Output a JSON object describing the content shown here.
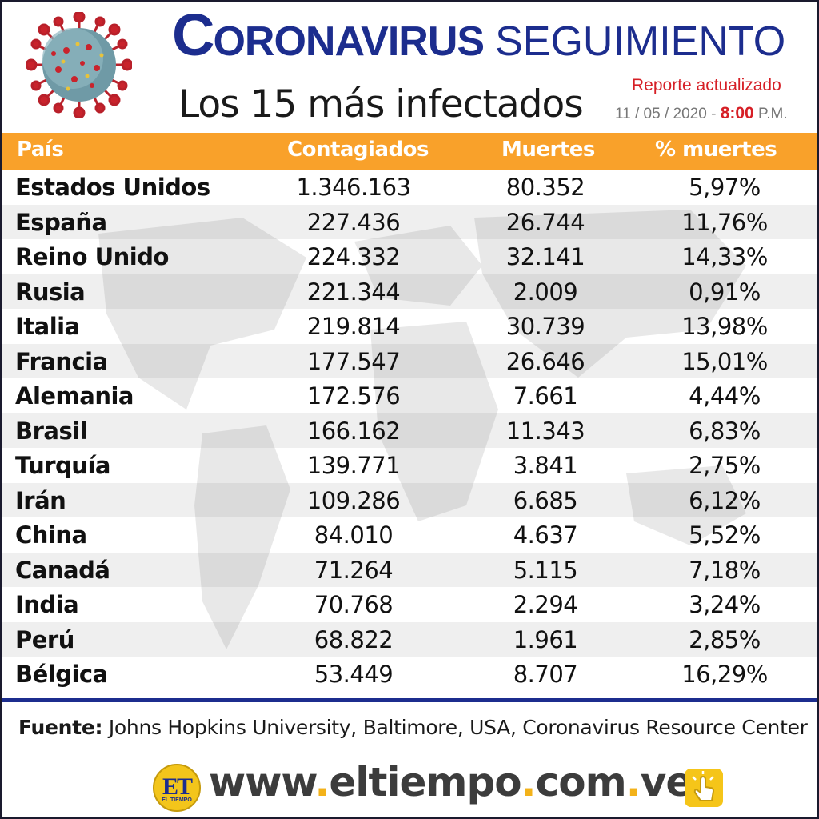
{
  "header": {
    "title_first_letter": "C",
    "title_bold_rest": "ORONAVIRUS",
    "title_light": "SEGUIMIENTO",
    "subtitle": "Los 15 más infectados",
    "report_label": "Reporte actualizado",
    "report_date": "11 / 05 / 2020 -",
    "report_hour": "8:00",
    "report_ampm": "P.M."
  },
  "table": {
    "headers": [
      "País",
      "Contagiados",
      "Muertes",
      "% muertes"
    ],
    "rows": [
      [
        "Estados Unidos",
        "1.346.163",
        "80.352",
        "5,97%"
      ],
      [
        "España",
        "227.436",
        "26.744",
        "11,76%"
      ],
      [
        "Reino Unido",
        "224.332",
        "32.141",
        "14,33%"
      ],
      [
        "Rusia",
        "221.344",
        "2.009",
        "0,91%"
      ],
      [
        "Italia",
        "219.814",
        "30.739",
        "13,98%"
      ],
      [
        "Francia",
        "177.547",
        "26.646",
        "15,01%"
      ],
      [
        "Alemania",
        "172.576",
        "7.661",
        "4,44%"
      ],
      [
        "Brasil",
        "166.162",
        "11.343",
        "6,83%"
      ],
      [
        "Turquía",
        "139.771",
        "3.841",
        "2,75%"
      ],
      [
        "Irán",
        "109.286",
        "6.685",
        "6,12%"
      ],
      [
        "China",
        "84.010",
        "4.637",
        "5,52%"
      ],
      [
        "Canadá",
        "71.264",
        "5.115",
        "7,18%"
      ],
      [
        "India",
        "70.768",
        "2.294",
        "3,24%"
      ],
      [
        "Perú",
        "68.822",
        "1.961",
        "2,85%"
      ],
      [
        "Bélgica",
        "53.449",
        "8.707",
        "16,29%"
      ]
    ]
  },
  "source": {
    "label": "Fuente:",
    "text": "Johns Hopkins University, Baltimore, USA, Coronavirus Resource Center"
  },
  "footer": {
    "logo_text": "ET",
    "logo_small": "EL TIEMPO",
    "url_parts": [
      "www",
      ".",
      "eltiempo",
      ".",
      "com",
      ".",
      "ve"
    ]
  },
  "colors": {
    "brand_blue": "#1c2d8e",
    "header_orange": "#f9a12a",
    "accent_red": "#d61f26",
    "logo_yellow": "#f3c51b"
  },
  "icons": [
    "coronavirus-icon",
    "world-map-icon",
    "click-hand-icon"
  ]
}
